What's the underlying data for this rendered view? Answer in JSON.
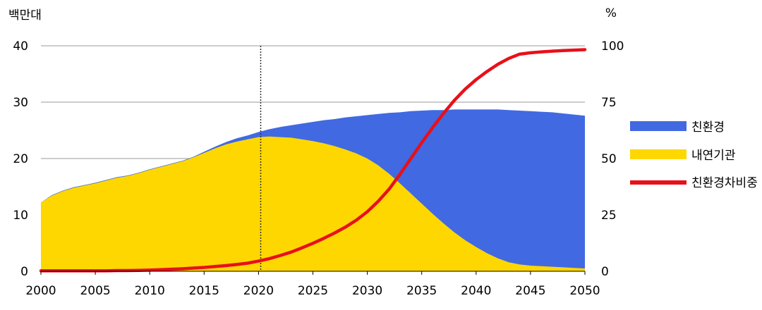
{
  "chart_data": {
    "type": "area",
    "title": "",
    "ylabel_left": "백만대",
    "ylabel_right": "%",
    "x": [
      2000,
      2001,
      2002,
      2003,
      2004,
      2005,
      2006,
      2007,
      2008,
      2009,
      2010,
      2011,
      2012,
      2013,
      2014,
      2015,
      2016,
      2017,
      2018,
      2019,
      2020,
      2021,
      2022,
      2023,
      2024,
      2025,
      2026,
      2027,
      2028,
      2029,
      2030,
      2031,
      2032,
      2033,
      2034,
      2035,
      2036,
      2037,
      2038,
      2039,
      2040,
      2041,
      2042,
      2043,
      2044,
      2045,
      2046,
      2047,
      2048,
      2049,
      2050
    ],
    "xlim": [
      2000,
      2050
    ],
    "xticks": [
      "2000",
      "2005",
      "2010",
      "2015",
      "2020",
      "2025",
      "2030",
      "2035",
      "2040",
      "2045",
      "2050"
    ],
    "ylim_left": [
      0,
      40
    ],
    "yticks_left": [
      "0",
      "10",
      "20",
      "30",
      "40"
    ],
    "ylim_right": [
      0,
      100
    ],
    "yticks_right": [
      "0",
      "25",
      "50",
      "75",
      "100"
    ],
    "vline_x": 2020.2,
    "grid": "horizontal",
    "legend_position": "right",
    "series": [
      {
        "name": "친환경",
        "kind": "area-stacked-top",
        "axis": "left",
        "color": "#4169E1",
        "values": [
          12.2,
          13.5,
          14.3,
          14.9,
          15.3,
          15.7,
          16.2,
          16.7,
          17.0,
          17.5,
          18.1,
          18.6,
          19.1,
          19.6,
          20.3,
          21.2,
          22.1,
          22.9,
          23.6,
          24.1,
          24.7,
          25.2,
          25.6,
          25.9,
          26.2,
          26.5,
          26.8,
          27.0,
          27.3,
          27.5,
          27.7,
          27.9,
          28.1,
          28.2,
          28.4,
          28.5,
          28.6,
          28.6,
          28.7,
          28.7,
          28.7,
          28.7,
          28.7,
          28.6,
          28.5,
          28.4,
          28.3,
          28.2,
          28.0,
          27.8,
          27.6
        ]
      },
      {
        "name": "내연기관",
        "kind": "area",
        "axis": "left",
        "color": "#FFD700",
        "values": [
          12.2,
          13.4,
          14.2,
          14.8,
          15.2,
          15.6,
          16.1,
          16.6,
          16.9,
          17.4,
          18.0,
          18.5,
          19.0,
          19.5,
          20.2,
          21.0,
          21.8,
          22.5,
          23.0,
          23.4,
          23.8,
          23.9,
          23.8,
          23.7,
          23.4,
          23.1,
          22.7,
          22.2,
          21.6,
          20.9,
          20.0,
          18.8,
          17.3,
          15.6,
          13.8,
          12.0,
          10.2,
          8.5,
          6.9,
          5.5,
          4.3,
          3.2,
          2.3,
          1.6,
          1.2,
          1.0,
          0.9,
          0.8,
          0.7,
          0.6,
          0.5
        ]
      },
      {
        "name": "친환경차비중",
        "kind": "line",
        "axis": "right",
        "color": "#E8101A",
        "values": [
          0.2,
          0.2,
          0.2,
          0.2,
          0.2,
          0.2,
          0.2,
          0.3,
          0.3,
          0.4,
          0.5,
          0.7,
          0.9,
          1.1,
          1.4,
          1.7,
          2.1,
          2.5,
          3.0,
          3.6,
          4.5,
          5.6,
          7.0,
          8.5,
          10.4,
          12.4,
          14.6,
          17.0,
          19.6,
          22.7,
          26.4,
          31.0,
          36.4,
          43.0,
          50.0,
          57.0,
          63.7,
          70.0,
          75.8,
          80.8,
          85.0,
          88.6,
          91.8,
          94.4,
          96.3,
          96.9,
          97.3,
          97.6,
          97.9,
          98.1,
          98.3
        ]
      }
    ]
  }
}
